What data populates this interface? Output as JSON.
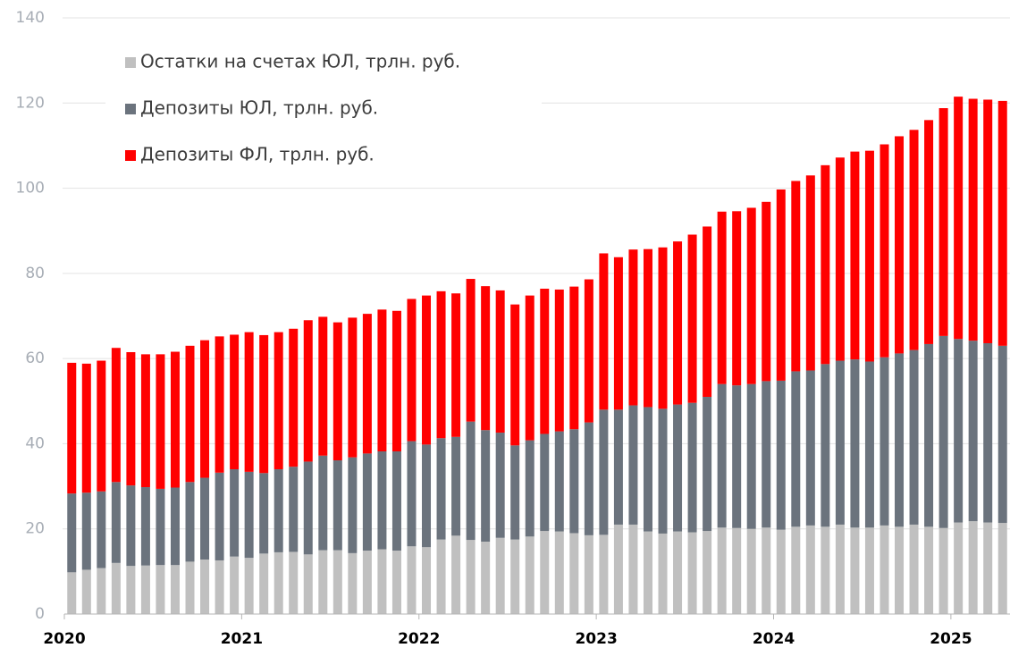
{
  "chart_data": {
    "type": "stacked_bar",
    "categories": [
      "2020",
      null,
      null,
      null,
      null,
      null,
      null,
      null,
      null,
      null,
      null,
      null,
      "2021",
      null,
      null,
      null,
      null,
      null,
      null,
      null,
      null,
      null,
      null,
      null,
      "2022",
      null,
      null,
      null,
      null,
      null,
      null,
      null,
      null,
      null,
      null,
      null,
      "2023",
      null,
      null,
      null,
      null,
      null,
      null,
      null,
      null,
      null,
      null,
      null,
      "2024",
      null,
      null,
      null,
      null,
      null,
      null,
      null,
      null,
      null,
      null,
      null,
      "2025",
      null,
      null,
      null
    ],
    "series": [
      {
        "name": "Остатки на счетах ЮЛ, трлн. руб.",
        "color": "#c0c0c0",
        "values": [
          9.8,
          10.4,
          10.8,
          12,
          11.3,
          11.4,
          11.5,
          11.5,
          12.3,
          12.8,
          12.6,
          13.5,
          13.2,
          14.2,
          14.5,
          14.6,
          14,
          15,
          15,
          14.3,
          14.9,
          15.2,
          14.9,
          15.9,
          15.7,
          17.5,
          18.4,
          17.4,
          17,
          17.9,
          17.5,
          18.2,
          19.5,
          19.4,
          19,
          18.5,
          18.6,
          21,
          21,
          19.4,
          18.9,
          19.4,
          19.2,
          19.5,
          20.3,
          20.2,
          20,
          20.3,
          19.8,
          20.5,
          20.8,
          20.5,
          21,
          20.3,
          20.3,
          20.8,
          20.5,
          21,
          20.5,
          20.2,
          21.5,
          21.8,
          21.5,
          21.4
        ]
      },
      {
        "name": "Депозиты ЮЛ, трлн. руб.",
        "color": "#6b737d",
        "values": [
          18.5,
          18.1,
          18.0,
          19.0,
          18.9,
          18.4,
          17.9,
          18.2,
          18.7,
          19.2,
          20.6,
          20.5,
          20.2,
          18.9,
          19.5,
          20.0,
          21.8,
          22.2,
          21.1,
          22.5,
          22.8,
          23.0,
          23.3,
          24.7,
          24.1,
          23.8,
          23.2,
          27.8,
          26.2,
          24.7,
          22.1,
          22.6,
          22.8,
          23.5,
          24.4,
          26.5,
          29.4,
          27.0,
          28.0,
          29.2,
          29.3,
          29.8,
          30.4,
          31.5,
          33.7,
          33.5,
          34.0,
          34.4,
          35.0,
          36.5,
          36.4,
          38.2,
          38.5,
          39.5,
          39.0,
          39.5,
          40.7,
          41.0,
          42.9,
          45.1,
          43.1,
          42.4,
          42.1,
          41.6
        ]
      },
      {
        "name": "Депозиты ФЛ, трлн. руб.",
        "color": "#ff0000",
        "values": [
          30.7,
          30.3,
          30.7,
          31.5,
          31.3,
          31.2,
          31.6,
          31.9,
          32.0,
          32.3,
          32.0,
          31.6,
          32.8,
          32.4,
          32.2,
          32.4,
          33.2,
          32.6,
          32.4,
          32.8,
          32.8,
          33.3,
          33.0,
          33.4,
          35.0,
          34.5,
          33.7,
          33.5,
          33.8,
          33.4,
          33.1,
          34.0,
          34.1,
          33.3,
          33.5,
          33.6,
          36.7,
          35.8,
          36.6,
          37.1,
          37.9,
          38.3,
          39.5,
          40.0,
          40.5,
          40.9,
          41.4,
          42.1,
          44.9,
          44.7,
          45.8,
          46.7,
          47.7,
          48.8,
          49.5,
          50.0,
          51.0,
          51.7,
          52.6,
          53.5,
          56.9,
          56.8,
          57.2,
          57.5
        ]
      }
    ],
    "ylim": [
      0,
      140
    ],
    "yticks": [
      0,
      20,
      40,
      60,
      80,
      100,
      120,
      140
    ],
    "grid": true,
    "legend": "upper-left"
  }
}
